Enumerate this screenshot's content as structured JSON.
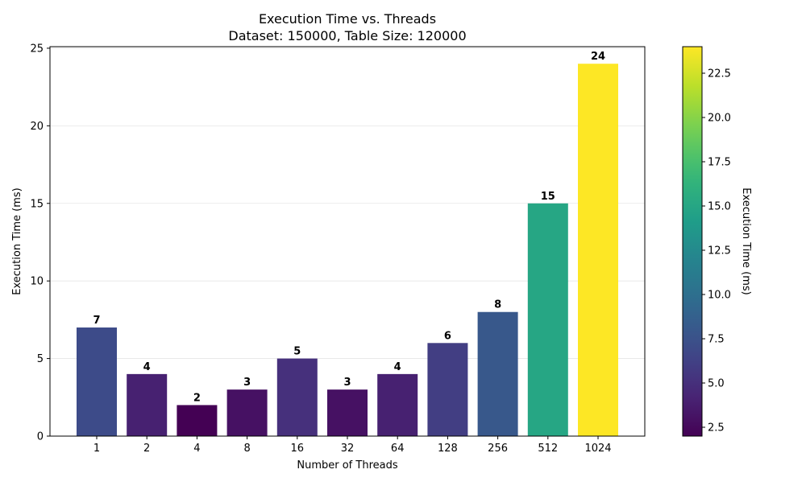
{
  "chart_data": {
    "type": "bar",
    "title": "Execution Time vs. Threads",
    "subtitle": "Dataset: 150000, Table Size: 120000",
    "xlabel": "Number of Threads",
    "ylabel": "Execution Time (ms)",
    "categories": [
      "1",
      "2",
      "4",
      "8",
      "16",
      "32",
      "64",
      "128",
      "256",
      "512",
      "1024"
    ],
    "values": [
      7,
      4,
      2,
      3,
      5,
      3,
      4,
      6,
      8,
      15,
      24
    ],
    "data_labels": [
      "7",
      "4",
      "2",
      "3",
      "5",
      "3",
      "4",
      "6",
      "8",
      "15",
      "24"
    ],
    "ylim": [
      0,
      25.1
    ],
    "yticks": [
      0,
      5,
      10,
      15,
      20,
      25
    ],
    "ytick_labels": [
      "0",
      "5",
      "10",
      "15",
      "20",
      "25"
    ],
    "grid": "y",
    "colormap": "viridis",
    "colorbar": {
      "label": "Execution Time (ms)",
      "range": [
        2,
        24
      ],
      "ticks": [
        2.5,
        5.0,
        7.5,
        10.0,
        12.5,
        15.0,
        17.5,
        20.0,
        22.5
      ],
      "tick_labels": [
        "2.5",
        "5.0",
        "7.5",
        "10.0",
        "12.5",
        "15.0",
        "17.5",
        "20.0",
        "22.5"
      ]
    }
  }
}
